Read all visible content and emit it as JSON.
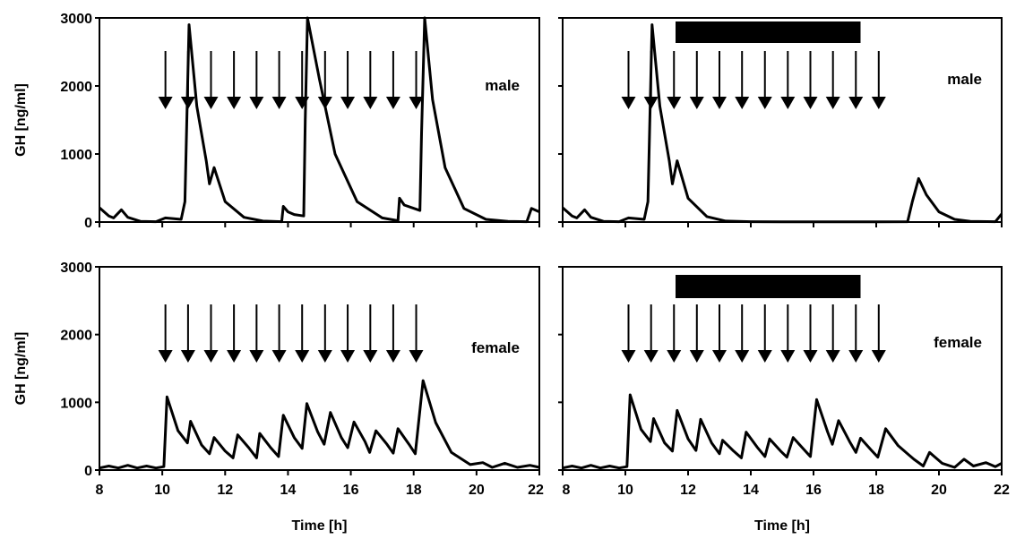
{
  "chart_data": [
    {
      "type": "line",
      "panel": "top-left",
      "ylabel": "GH [ng/ml]",
      "xlabel": "",
      "annotation": "male",
      "xlim": [
        8,
        22
      ],
      "ylim": [
        0,
        3000
      ],
      "xticks": [
        "8",
        "10",
        "12",
        "14",
        "16",
        "18",
        "20",
        "22"
      ],
      "yticks": [
        "0",
        "1000",
        "2000",
        "3000"
      ],
      "arrow_times": [
        10.1,
        10.82,
        11.55,
        12.28,
        13.0,
        13.72,
        14.45,
        15.18,
        15.9,
        16.62,
        17.35,
        18.08
      ],
      "bar": null,
      "series": [
        {
          "x": [
            8.0,
            8.3,
            8.45,
            8.7,
            8.9,
            9.3,
            9.8,
            10.1,
            10.6,
            10.72,
            10.85,
            11.1,
            11.4,
            11.5,
            11.65,
            12.0,
            12.6,
            13.2,
            13.8,
            13.85,
            14.0,
            14.2,
            14.5,
            14.55,
            14.62,
            15.0,
            15.5,
            16.2,
            17.0,
            17.5,
            17.55,
            17.7,
            18.2,
            18.25,
            18.35,
            18.6,
            19.0,
            19.6,
            20.3,
            21.0,
            21.6,
            21.75,
            22.0
          ],
          "y": [
            210,
            90,
            60,
            180,
            70,
            10,
            5,
            60,
            40,
            300,
            2900,
            1700,
            900,
            560,
            800,
            300,
            70,
            15,
            5,
            230,
            150,
            110,
            90,
            1500,
            3000,
            2100,
            1000,
            300,
            60,
            20,
            350,
            250,
            170,
            1300,
            3000,
            1800,
            800,
            200,
            40,
            10,
            5,
            200,
            150
          ]
        }
      ]
    },
    {
      "type": "line",
      "panel": "top-right",
      "ylabel": "",
      "xlabel": "",
      "annotation": "male",
      "xlim": [
        8,
        22
      ],
      "ylim": [
        0,
        3000
      ],
      "xticks": [
        "8",
        "10",
        "12",
        "14",
        "16",
        "18",
        "20",
        "22"
      ],
      "yticks": [
        "0",
        "1000",
        "2000",
        "3000"
      ],
      "arrow_times": [
        10.1,
        10.82,
        11.55,
        12.28,
        13.0,
        13.72,
        14.45,
        15.18,
        15.9,
        16.62,
        17.35,
        18.08
      ],
      "bar": [
        11.6,
        17.5
      ],
      "series": [
        {
          "x": [
            8.0,
            8.3,
            8.45,
            8.7,
            8.9,
            9.3,
            9.8,
            10.1,
            10.6,
            10.72,
            10.85,
            11.1,
            11.4,
            11.5,
            11.65,
            12.0,
            12.6,
            13.2,
            14.0,
            15.0,
            16.0,
            17.0,
            18.0,
            19.0,
            19.15,
            19.35,
            19.6,
            20.0,
            20.5,
            21.0,
            21.8,
            22.0
          ],
          "y": [
            210,
            90,
            60,
            180,
            70,
            10,
            5,
            60,
            40,
            300,
            2900,
            1700,
            900,
            560,
            900,
            350,
            80,
            15,
            5,
            3,
            2,
            2,
            2,
            5,
            300,
            640,
            400,
            150,
            40,
            10,
            5,
            120
          ]
        }
      ]
    },
    {
      "type": "line",
      "panel": "bottom-left",
      "ylabel": "GH [ng/ml]",
      "xlabel": "Time [h]",
      "annotation": "female",
      "xlim": [
        8,
        22
      ],
      "ylim": [
        0,
        3000
      ],
      "xticks": [
        "8",
        "10",
        "12",
        "14",
        "16",
        "18",
        "20",
        "22"
      ],
      "yticks": [
        "0",
        "1000",
        "2000",
        "3000"
      ],
      "arrow_times": [
        10.1,
        10.82,
        11.55,
        12.28,
        13.0,
        13.72,
        14.45,
        15.18,
        15.9,
        16.62,
        17.35,
        18.08
      ],
      "bar": null,
      "series": [
        {
          "x": [
            8.0,
            8.3,
            8.6,
            8.9,
            9.2,
            9.5,
            9.8,
            10.05,
            10.15,
            10.5,
            10.8,
            10.9,
            11.25,
            11.5,
            11.65,
            12.0,
            12.25,
            12.4,
            12.75,
            13.0,
            13.1,
            13.45,
            13.7,
            13.85,
            14.2,
            14.45,
            14.6,
            14.95,
            15.15,
            15.35,
            15.7,
            15.9,
            16.1,
            16.45,
            16.6,
            16.8,
            17.15,
            17.35,
            17.5,
            17.85,
            18.05,
            18.3,
            18.7,
            19.2,
            19.8,
            20.2,
            20.5,
            20.9,
            21.3,
            21.7,
            22.0
          ],
          "y": [
            30,
            60,
            30,
            70,
            30,
            60,
            30,
            50,
            1080,
            580,
            400,
            720,
            370,
            240,
            480,
            280,
            180,
            520,
            330,
            180,
            540,
            330,
            200,
            810,
            480,
            320,
            980,
            560,
            380,
            850,
            480,
            330,
            710,
            420,
            260,
            580,
            380,
            250,
            610,
            380,
            240,
            1320,
            700,
            260,
            80,
            110,
            40,
            100,
            40,
            70,
            40
          ]
        }
      ]
    },
    {
      "type": "line",
      "panel": "bottom-right",
      "ylabel": "",
      "xlabel": "Time [h]",
      "annotation": "female",
      "xlim": [
        8,
        22
      ],
      "ylim": [
        0,
        3000
      ],
      "xticks": [
        "8",
        "10",
        "12",
        "14",
        "16",
        "18",
        "20",
        "22"
      ],
      "yticks": [
        "0",
        "1000",
        "2000",
        "3000"
      ],
      "arrow_times": [
        10.1,
        10.82,
        11.55,
        12.28,
        13.0,
        13.72,
        14.45,
        15.18,
        15.9,
        16.62,
        17.35,
        18.08
      ],
      "bar": [
        11.6,
        17.5
      ],
      "series": [
        {
          "x": [
            8.0,
            8.3,
            8.6,
            8.9,
            9.2,
            9.5,
            9.8,
            10.05,
            10.15,
            10.5,
            10.8,
            10.9,
            11.25,
            11.5,
            11.65,
            12.0,
            12.25,
            12.4,
            12.75,
            13.0,
            13.1,
            13.45,
            13.7,
            13.85,
            14.2,
            14.45,
            14.6,
            14.95,
            15.15,
            15.35,
            15.7,
            15.9,
            16.1,
            16.45,
            16.6,
            16.8,
            17.15,
            17.35,
            17.5,
            17.85,
            18.05,
            18.3,
            18.7,
            19.2,
            19.5,
            19.7,
            20.1,
            20.5,
            20.8,
            21.1,
            21.5,
            21.8,
            22.0
          ],
          "y": [
            30,
            60,
            30,
            70,
            30,
            60,
            30,
            50,
            1110,
            600,
            420,
            760,
            400,
            280,
            880,
            460,
            290,
            750,
            400,
            240,
            440,
            280,
            180,
            560,
            340,
            200,
            460,
            280,
            190,
            480,
            300,
            200,
            1040,
            560,
            380,
            730,
            420,
            260,
            470,
            290,
            190,
            610,
            360,
            160,
            60,
            260,
            100,
            40,
            160,
            60,
            110,
            50,
            100
          ]
        }
      ]
    }
  ]
}
